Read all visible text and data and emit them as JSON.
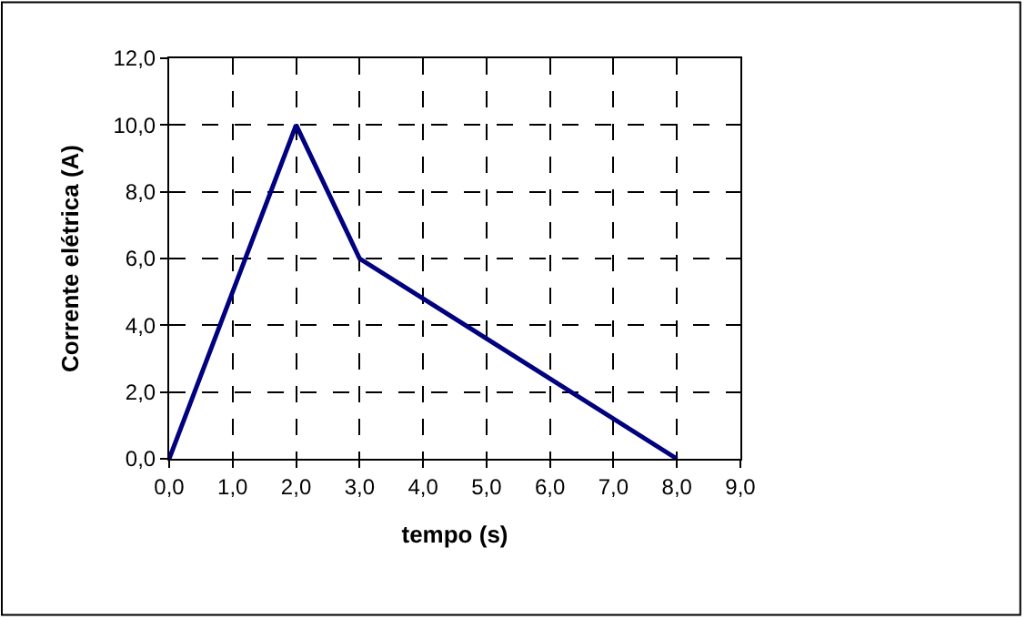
{
  "chart_data": {
    "type": "line",
    "xlabel": "tempo (s)",
    "ylabel": "Corrente elétrica (A)",
    "x": [
      0,
      2,
      3,
      8
    ],
    "series": [
      {
        "color": "#000080",
        "values": [
          0,
          10,
          6,
          0
        ]
      }
    ],
    "xlim": [
      0,
      9
    ],
    "ylim": [
      0,
      12
    ],
    "xticks": [
      {
        "value": 0,
        "label": "0,0"
      },
      {
        "value": 1,
        "label": "1,0"
      },
      {
        "value": 2,
        "label": "2,0"
      },
      {
        "value": 3,
        "label": "3,0"
      },
      {
        "value": 4,
        "label": "4,0"
      },
      {
        "value": 5,
        "label": "5,0"
      },
      {
        "value": 6,
        "label": "6,0"
      },
      {
        "value": 7,
        "label": "7,0"
      },
      {
        "value": 8,
        "label": "8,0"
      },
      {
        "value": 9,
        "label": "9,0"
      }
    ],
    "yticks": [
      {
        "value": 0,
        "label": "0,0"
      },
      {
        "value": 2,
        "label": "2,0"
      },
      {
        "value": 4,
        "label": "4,0"
      },
      {
        "value": 6,
        "label": "6,0"
      },
      {
        "value": 8,
        "label": "8,0"
      },
      {
        "value": 10,
        "label": "10,0"
      },
      {
        "value": 12,
        "label": "12,0"
      }
    ],
    "grid": true,
    "marker": "none",
    "line_style": "solid"
  }
}
